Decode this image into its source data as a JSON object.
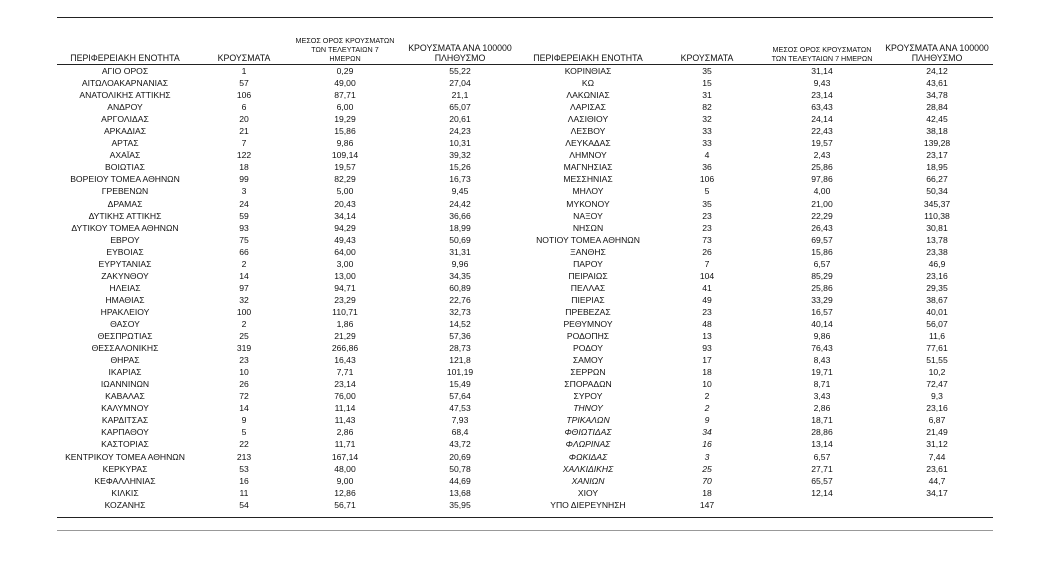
{
  "headers": {
    "region": "ΠΕΡΙΦΕΡΕΙΑΚΗ ΕΝΟΤΗΤΑ",
    "cases": "ΚΡΟΥΣΜΑΤΑ",
    "avg7_line1": "ΜΕΣΟΣ ΟΡΟΣ ΚΡΟΥΣΜΑΤΩΝ",
    "avg7_line2": "ΤΩΝ ΤΕΛΕΥΤΑΙΩΝ 7 ΗΜΕΡΩΝ",
    "per100k_line1": "ΚΡΟΥΣΜΑΤΑ ΑΝΑ 100000",
    "per100k_line2": "ΠΛΗΘΥΣΜΟ"
  },
  "left_rows": [
    [
      "ΑΓΙΟ ΟΡΟΣ",
      "1",
      "0,29",
      "55,22"
    ],
    [
      "ΑΙΤΩΛΟΑΚΑΡΝΑΝΙΑΣ",
      "57",
      "49,00",
      "27,04"
    ],
    [
      "ΑΝΑΤΟΛΙΚΗΣ ΑΤΤΙΚΗΣ",
      "106",
      "87,71",
      "21,1"
    ],
    [
      "ΑΝΔΡΟΥ",
      "6",
      "6,00",
      "65,07"
    ],
    [
      "ΑΡΓΟΛΙΔΑΣ",
      "20",
      "19,29",
      "20,61"
    ],
    [
      "ΑΡΚΑΔΙΑΣ",
      "21",
      "15,86",
      "24,23"
    ],
    [
      "ΑΡΤΑΣ",
      "7",
      "9,86",
      "10,31"
    ],
    [
      "ΑΧΑΪΑΣ",
      "122",
      "109,14",
      "39,32"
    ],
    [
      "ΒΟΙΩΤΙΑΣ",
      "18",
      "19,57",
      "15,26"
    ],
    [
      "ΒΟΡΕΙΟΥ ΤΟΜΕΑ ΑΘΗΝΩΝ",
      "99",
      "82,29",
      "16,73"
    ],
    [
      "ΓΡΕΒΕΝΩΝ",
      "3",
      "5,00",
      "9,45"
    ],
    [
      "ΔΡΑΜΑΣ",
      "24",
      "20,43",
      "24,42"
    ],
    [
      "ΔΥΤΙΚΗΣ ΑΤΤΙΚΗΣ",
      "59",
      "34,14",
      "36,66"
    ],
    [
      "ΔΥΤΙΚΟΥ ΤΟΜΕΑ ΑΘΗΝΩΝ",
      "93",
      "94,29",
      "18,99"
    ],
    [
      "ΕΒΡΟΥ",
      "75",
      "49,43",
      "50,69"
    ],
    [
      "ΕΥΒΟΙΑΣ",
      "66",
      "64,00",
      "31,31"
    ],
    [
      "ΕΥΡΥΤΑΝΙΑΣ",
      "2",
      "3,00",
      "9,96"
    ],
    [
      "ΖΑΚΥΝΘΟΥ",
      "14",
      "13,00",
      "34,35"
    ],
    [
      "ΗΛΕΙΑΣ",
      "97",
      "94,71",
      "60,89"
    ],
    [
      "ΗΜΑΘΙΑΣ",
      "32",
      "23,29",
      "22,76"
    ],
    [
      "ΗΡΑΚΛΕΙΟΥ",
      "100",
      "110,71",
      "32,73"
    ],
    [
      "ΘΑΣΟΥ",
      "2",
      "1,86",
      "14,52"
    ],
    [
      "ΘΕΣΠΡΩΤΙΑΣ",
      "25",
      "21,29",
      "57,36"
    ],
    [
      "ΘΕΣΣΑΛΟΝΙΚΗΣ",
      "319",
      "266,86",
      "28,73"
    ],
    [
      "ΘΗΡΑΣ",
      "23",
      "16,43",
      "121,8"
    ],
    [
      "ΙΚΑΡΙΑΣ",
      "10",
      "7,71",
      "101,19"
    ],
    [
      "ΙΩΑΝΝΙΝΩΝ",
      "26",
      "23,14",
      "15,49"
    ],
    [
      "ΚΑΒΑΛΑΣ",
      "72",
      "76,00",
      "57,64"
    ],
    [
      "ΚΑΛΥΜΝΟΥ",
      "14",
      "11,14",
      "47,53"
    ],
    [
      "ΚΑΡΔΙΤΣΑΣ",
      "9",
      "11,43",
      "7,93"
    ],
    [
      "ΚΑΡΠΑΘΟΥ",
      "5",
      "2,86",
      "68,4"
    ],
    [
      "ΚΑΣΤΟΡΙΑΣ",
      "22",
      "11,71",
      "43,72"
    ],
    [
      "ΚΕΝΤΡΙΚΟΥ ΤΟΜΕΑ ΑΘΗΝΩΝ",
      "213",
      "167,14",
      "20,69"
    ],
    [
      "ΚΕΡΚΥΡΑΣ",
      "53",
      "48,00",
      "50,78"
    ],
    [
      "ΚΕΦΑΛΛΗΝΙΑΣ",
      "16",
      "9,00",
      "44,69"
    ],
    [
      "ΚΙΛΚΙΣ",
      "11",
      "12,86",
      "13,68"
    ],
    [
      "ΚΟΖΑΝΗΣ",
      "54",
      "56,71",
      "35,95"
    ]
  ],
  "right_rows": [
    [
      "ΚΟΡΙΝΘΙΑΣ",
      "35",
      "31,14",
      "24,12"
    ],
    [
      "ΚΩ",
      "15",
      "9,43",
      "43,61"
    ],
    [
      "ΛΑΚΩΝΙΑΣ",
      "31",
      "23,14",
      "34,78"
    ],
    [
      "ΛΑΡΙΣΑΣ",
      "82",
      "63,43",
      "28,84"
    ],
    [
      "ΛΑΣΙΘΙΟΥ",
      "32",
      "24,14",
      "42,45"
    ],
    [
      "ΛΕΣΒΟΥ",
      "33",
      "22,43",
      "38,18"
    ],
    [
      "ΛΕΥΚΑΔΑΣ",
      "33",
      "19,57",
      "139,28"
    ],
    [
      "ΛΗΜΝΟΥ",
      "4",
      "2,43",
      "23,17"
    ],
    [
      "ΜΑΓΝΗΣΙΑΣ",
      "36",
      "25,86",
      "18,95"
    ],
    [
      "ΜΕΣΣΗΝΙΑΣ",
      "106",
      "97,86",
      "66,27"
    ],
    [
      "ΜΗΛΟΥ",
      "5",
      "4,00",
      "50,34"
    ],
    [
      "ΜΥΚΟΝΟΥ",
      "35",
      "21,00",
      "345,37"
    ],
    [
      "ΝΑΞΟΥ",
      "23",
      "22,29",
      "110,38"
    ],
    [
      "ΝΗΣΩΝ",
      "23",
      "26,43",
      "30,81"
    ],
    [
      "ΝΟΤΙΟΥ ΤΟΜΕΑ ΑΘΗΝΩΝ",
      "73",
      "69,57",
      "13,78"
    ],
    [
      "ΞΑΝΘΗΣ",
      "26",
      "15,86",
      "23,38"
    ],
    [
      "ΠΑΡΟΥ",
      "7",
      "6,57",
      "46,9"
    ],
    [
      "ΠΕΙΡΑΙΩΣ",
      "104",
      "85,29",
      "23,16"
    ],
    [
      "ΠΕΛΛΑΣ",
      "41",
      "25,86",
      "29,35"
    ],
    [
      "ΠΙΕΡΙΑΣ",
      "49",
      "33,29",
      "38,67"
    ],
    [
      "ΠΡΕΒΕΖΑΣ",
      "23",
      "16,57",
      "40,01"
    ],
    [
      "ΡΕΘΥΜΝΟΥ",
      "48",
      "40,14",
      "56,07"
    ],
    [
      "ΡΟΔΟΠΗΣ",
      "13",
      "9,86",
      "11,6"
    ],
    [
      "ΡΟΔΟΥ",
      "93",
      "76,43",
      "77,61"
    ],
    [
      "ΣΑΜΟΥ",
      "17",
      "8,43",
      "51,55"
    ],
    [
      "ΣΕΡΡΩΝ",
      "18",
      "19,71",
      "10,2"
    ],
    [
      "ΣΠΟΡΑΔΩΝ",
      "10",
      "8,71",
      "72,47"
    ],
    [
      "ΣΥΡΟΥ",
      "2",
      "3,43",
      "9,3"
    ],
    [
      "ΤΗΝΟΥ",
      "2",
      "2,86",
      "23,16",
      true
    ],
    [
      "ΤΡΙΚΑΛΩΝ",
      "9",
      "18,71",
      "6,87",
      true
    ],
    [
      "ΦΘΙΩΤΙΔΑΣ",
      "34",
      "28,86",
      "21,49",
      true
    ],
    [
      "ΦΛΩΡΙΝΑΣ",
      "16",
      "13,14",
      "31,12",
      true
    ],
    [
      "ΦΩΚΙΔΑΣ",
      "3",
      "6,57",
      "7,44",
      true
    ],
    [
      "ΧΑΛΚΙΔΙΚΗΣ",
      "25",
      "27,71",
      "23,61",
      true
    ],
    [
      "ΧΑΝΙΩΝ",
      "70",
      "65,57",
      "44,7",
      true
    ],
    [
      "ΧΙΟΥ",
      "18",
      "12,14",
      "34,17"
    ],
    [
      "ΥΠΟ ΔΙΕΡΕΥΝΗΣΗ",
      "147",
      "",
      ""
    ]
  ]
}
